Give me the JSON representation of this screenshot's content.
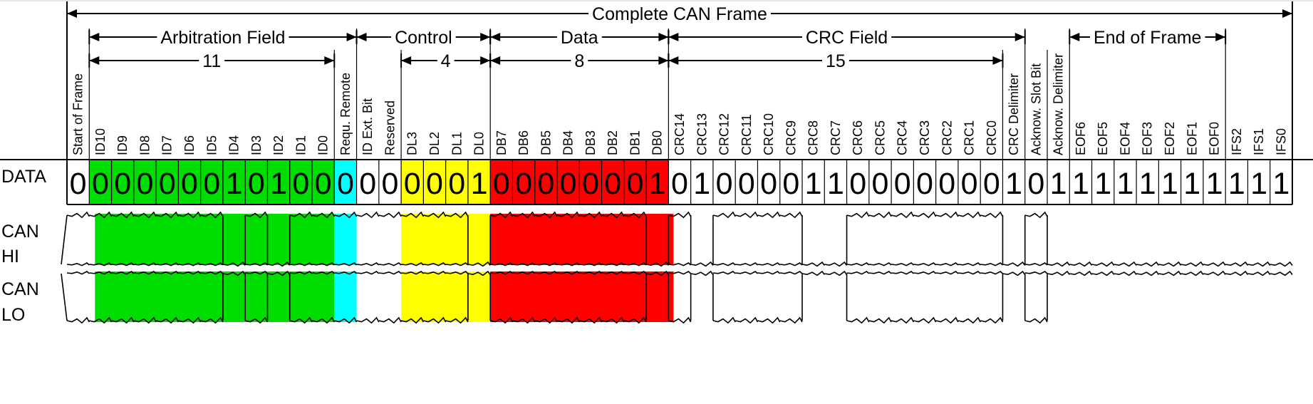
{
  "diagram": {
    "title": "Complete CAN Frame",
    "rows": {
      "data": "DATA",
      "can_hi": [
        "CAN",
        "HI"
      ],
      "can_lo": [
        "CAN",
        "LO"
      ]
    },
    "fields": [
      {
        "label": "Arbitration Field",
        "from": 1,
        "to": 12
      },
      {
        "label": "Control",
        "from": 13,
        "to": 18
      },
      {
        "label": "Data",
        "from": 19,
        "to": 26
      },
      {
        "label": "CRC Field",
        "from": 27,
        "to": 42
      },
      {
        "label": "End of Frame",
        "from": 45,
        "to": 51
      }
    ],
    "counts": [
      {
        "label": "11",
        "from": 1,
        "to": 11
      },
      {
        "label": "4",
        "from": 15,
        "to": 18
      },
      {
        "label": "8",
        "from": 19,
        "to": 26
      },
      {
        "label": "15",
        "from": 27,
        "to": 41
      }
    ],
    "colors": {
      "arbitration": "#00dd00",
      "remote": "#00ffff",
      "control": "#ffff00",
      "data": "#ff0000",
      "none": "#ffffff"
    },
    "bits": [
      {
        "name": "Start of Frame",
        "value": "0",
        "color": "none"
      },
      {
        "name": "ID10",
        "value": "0",
        "color": "arbitration"
      },
      {
        "name": "ID9",
        "value": "0",
        "color": "arbitration"
      },
      {
        "name": "ID8",
        "value": "0",
        "color": "arbitration"
      },
      {
        "name": "ID7",
        "value": "0",
        "color": "arbitration"
      },
      {
        "name": "ID6",
        "value": "0",
        "color": "arbitration"
      },
      {
        "name": "ID5",
        "value": "0",
        "color": "arbitration"
      },
      {
        "name": "ID4",
        "value": "1",
        "color": "arbitration"
      },
      {
        "name": "ID3",
        "value": "0",
        "color": "arbitration"
      },
      {
        "name": "ID2",
        "value": "1",
        "color": "arbitration"
      },
      {
        "name": "ID1",
        "value": "0",
        "color": "arbitration"
      },
      {
        "name": "ID0",
        "value": "0",
        "color": "arbitration"
      },
      {
        "name": "Requ. Remote",
        "value": "0",
        "color": "remote"
      },
      {
        "name": "ID Ext. Bit",
        "value": "0",
        "color": "none"
      },
      {
        "name": "Reserved",
        "value": "0",
        "color": "none"
      },
      {
        "name": "DL3",
        "value": "0",
        "color": "control"
      },
      {
        "name": "DL2",
        "value": "0",
        "color": "control"
      },
      {
        "name": "DL1",
        "value": "0",
        "color": "control"
      },
      {
        "name": "DL0",
        "value": "1",
        "color": "control"
      },
      {
        "name": "DB7",
        "value": "0",
        "color": "data"
      },
      {
        "name": "DB6",
        "value": "0",
        "color": "data"
      },
      {
        "name": "DB5",
        "value": "0",
        "color": "data"
      },
      {
        "name": "DB4",
        "value": "0",
        "color": "data"
      },
      {
        "name": "DB3",
        "value": "0",
        "color": "data"
      },
      {
        "name": "DB2",
        "value": "0",
        "color": "data"
      },
      {
        "name": "DB1",
        "value": "0",
        "color": "data"
      },
      {
        "name": "DB0",
        "value": "1",
        "color": "data"
      },
      {
        "name": "CRC14",
        "value": "0",
        "color": "none"
      },
      {
        "name": "CRC13",
        "value": "1",
        "color": "none"
      },
      {
        "name": "CRC12",
        "value": "0",
        "color": "none"
      },
      {
        "name": "CRC11",
        "value": "0",
        "color": "none"
      },
      {
        "name": "CRC10",
        "value": "0",
        "color": "none"
      },
      {
        "name": "CRC9",
        "value": "0",
        "color": "none"
      },
      {
        "name": "CRC8",
        "value": "1",
        "color": "none"
      },
      {
        "name": "CRC7",
        "value": "1",
        "color": "none"
      },
      {
        "name": "CRC6",
        "value": "0",
        "color": "none"
      },
      {
        "name": "CRC5",
        "value": "0",
        "color": "none"
      },
      {
        "name": "CRC4",
        "value": "0",
        "color": "none"
      },
      {
        "name": "CRC3",
        "value": "0",
        "color": "none"
      },
      {
        "name": "CRC2",
        "value": "0",
        "color": "none"
      },
      {
        "name": "CRC1",
        "value": "0",
        "color": "none"
      },
      {
        "name": "CRC0",
        "value": "0",
        "color": "none"
      },
      {
        "name": "CRC Delimiter",
        "value": "1",
        "color": "none"
      },
      {
        "name": "Acknow. Slot Bit",
        "value": "0",
        "color": "none"
      },
      {
        "name": "Acknow. Delimiter",
        "value": "1",
        "color": "none"
      },
      {
        "name": "EOF6",
        "value": "1",
        "color": "none"
      },
      {
        "name": "EOF5",
        "value": "1",
        "color": "none"
      },
      {
        "name": "EOF4",
        "value": "1",
        "color": "none"
      },
      {
        "name": "EOF3",
        "value": "1",
        "color": "none"
      },
      {
        "name": "EOF2",
        "value": "1",
        "color": "none"
      },
      {
        "name": "EOF1",
        "value": "1",
        "color": "none"
      },
      {
        "name": "EOF0",
        "value": "1",
        "color": "none"
      },
      {
        "name": "IFS2",
        "value": "1",
        "color": "none"
      },
      {
        "name": "IFS1",
        "value": "1",
        "color": "none"
      },
      {
        "name": "IFS0",
        "value": "1",
        "color": "none"
      }
    ]
  }
}
